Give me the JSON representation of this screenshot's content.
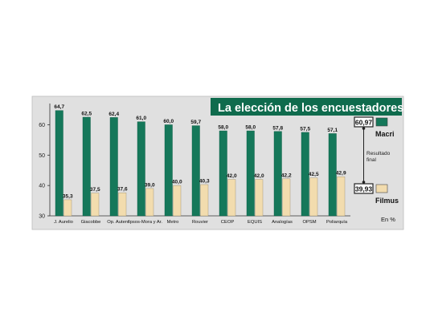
{
  "chart_data": {
    "type": "bar",
    "title": "La elección de los encuestadores",
    "categories": [
      "J. Aurelio",
      "Giacobbe",
      "Op. Autent",
      "Ipsos-Mora y Ar.",
      "Metro",
      "Rouvier",
      "CEOP",
      "EQUIS",
      "Analogías",
      "OPSM",
      "Poliarquía"
    ],
    "series": [
      {
        "name": "Macri",
        "values": [
          64.7,
          62.5,
          62.4,
          61.0,
          60.0,
          59.7,
          58.0,
          58.0,
          57.8,
          57.5,
          57.1
        ]
      },
      {
        "name": "Filmus",
        "values": [
          35.3,
          37.5,
          37.6,
          39.0,
          40.0,
          40.3,
          42.0,
          42.0,
          42.2,
          42.5,
          42.9
        ]
      }
    ],
    "data_labels": {
      "Macri": [
        "64,7",
        "62,5",
        "62,4",
        "61,0",
        "60,0",
        "59,7",
        "58,0",
        "58,0",
        "57,8",
        "57,5",
        "57,1"
      ],
      "Filmus": [
        "35,3",
        "37,5",
        "37,6",
        "39,0",
        "40,0",
        "40,3",
        "42,0",
        "42,0",
        "42,2",
        "42,5",
        "42,9"
      ]
    },
    "ylim": [
      30,
      67
    ],
    "yticks": [
      30,
      40,
      50,
      60
    ],
    "grid": false,
    "legend_position": "right",
    "colors": {
      "Macri": "#15785a",
      "Filmus": "#f2dcae",
      "background": "#e0e0e0",
      "title_bg": "#0f6b4d"
    },
    "final_result": {
      "label": "Resultado final",
      "macri": "60,97",
      "filmus": "39,93"
    },
    "unit_label": "En %"
  }
}
